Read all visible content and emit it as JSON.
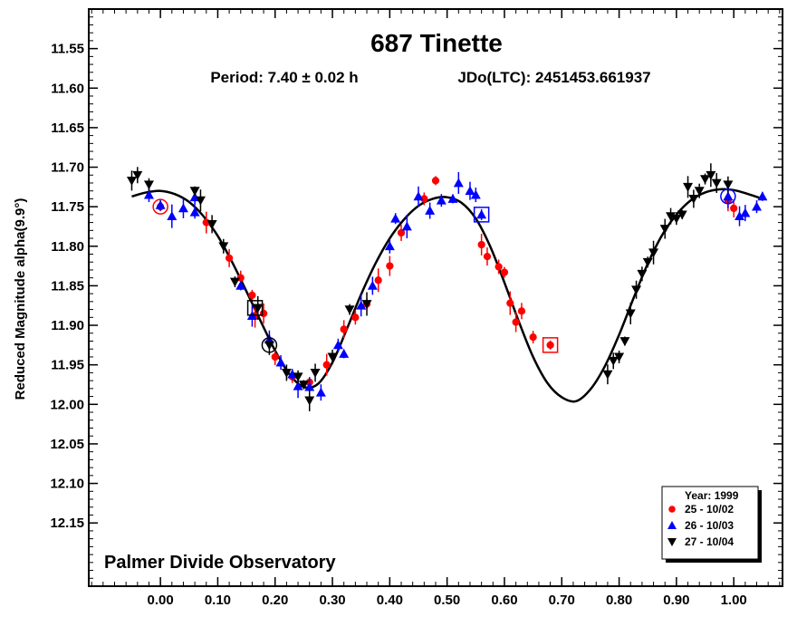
{
  "chart_data": {
    "type": "scatter",
    "title": "687 Tinette",
    "subtitle_period": "Period: 7.40 ± 0.02 h",
    "subtitle_jdo": "JDo(LTC): 2451453.661937",
    "ylabel": "Reduced Magnitude alpha(9.9°)",
    "xlabel": "",
    "xlim": [
      -0.125,
      1.085
    ],
    "ylim": [
      11.5,
      12.23
    ],
    "y_inverted": true,
    "x_ticks": [
      "0.00",
      "0.10",
      "0.20",
      "0.30",
      "0.40",
      "0.50",
      "0.60",
      "0.70",
      "0.80",
      "0.90",
      "1.00"
    ],
    "y_ticks": [
      "11.55",
      "11.60",
      "11.65",
      "11.70",
      "11.75",
      "11.80",
      "11.85",
      "11.90",
      "11.95",
      "12.00",
      "12.05",
      "12.10",
      "12.15"
    ],
    "grid": false,
    "annotation": "Palmer Divide Observatory",
    "legend": {
      "placement": "bottom-right",
      "title": "Year: 1999",
      "entries": [
        "25 - 10/02",
        "26 - 10/03",
        "27 - 10/04"
      ]
    },
    "series": [
      {
        "name": "25 - 10/02",
        "marker": "circle",
        "color": "#ff0000",
        "points": [
          [
            0.0,
            11.75
          ],
          [
            0.08,
            11.77
          ],
          [
            0.12,
            11.815
          ],
          [
            0.14,
            11.84
          ],
          [
            0.16,
            11.862
          ],
          [
            0.165,
            11.888
          ],
          [
            0.18,
            11.885
          ],
          [
            0.2,
            11.94
          ],
          [
            0.23,
            11.965
          ],
          [
            0.26,
            11.972
          ],
          [
            0.29,
            11.95
          ],
          [
            0.32,
            11.905
          ],
          [
            0.34,
            11.89
          ],
          [
            0.36,
            11.873
          ],
          [
            0.38,
            11.843
          ],
          [
            0.4,
            11.825
          ],
          [
            0.42,
            11.783
          ],
          [
            0.46,
            11.74
          ],
          [
            0.48,
            11.717
          ],
          [
            0.56,
            11.798
          ],
          [
            0.57,
            11.813
          ],
          [
            0.59,
            11.826
          ],
          [
            0.6,
            11.833
          ],
          [
            0.61,
            11.872
          ],
          [
            0.62,
            11.896
          ],
          [
            0.63,
            11.882
          ],
          [
            0.65,
            11.915
          ],
          [
            0.68,
            11.925
          ],
          [
            0.99,
            11.742
          ],
          [
            1.0,
            11.752
          ]
        ]
      },
      {
        "name": "26 - 10/03",
        "marker": "triangle-up",
        "color": "#0000ff",
        "points": [
          [
            -0.02,
            11.735
          ],
          [
            0.0,
            11.748
          ],
          [
            0.02,
            11.762
          ],
          [
            0.04,
            11.752
          ],
          [
            0.06,
            11.738
          ],
          [
            0.06,
            11.757
          ],
          [
            0.14,
            11.85
          ],
          [
            0.16,
            11.888
          ],
          [
            0.19,
            11.918
          ],
          [
            0.21,
            11.947
          ],
          [
            0.23,
            11.962
          ],
          [
            0.24,
            11.977
          ],
          [
            0.26,
            11.978
          ],
          [
            0.28,
            11.985
          ],
          [
            0.31,
            11.925
          ],
          [
            0.32,
            11.936
          ],
          [
            0.35,
            11.875
          ],
          [
            0.37,
            11.85
          ],
          [
            0.4,
            11.8
          ],
          [
            0.41,
            11.765
          ],
          [
            0.43,
            11.775
          ],
          [
            0.45,
            11.737
          ],
          [
            0.47,
            11.755
          ],
          [
            0.49,
            11.742
          ],
          [
            0.51,
            11.74
          ],
          [
            0.52,
            11.72
          ],
          [
            0.54,
            11.73
          ],
          [
            0.55,
            11.735
          ],
          [
            0.56,
            11.76
          ],
          [
            0.99,
            11.737
          ],
          [
            1.01,
            11.762
          ],
          [
            1.02,
            11.758
          ],
          [
            1.04,
            11.75
          ],
          [
            1.05,
            11.737
          ]
        ]
      },
      {
        "name": "27 - 10/04",
        "marker": "triangle-down",
        "color": "#000000",
        "points": [
          [
            -0.05,
            11.717
          ],
          [
            -0.04,
            11.71
          ],
          [
            -0.02,
            11.722
          ],
          [
            0.06,
            11.73
          ],
          [
            0.07,
            11.742
          ],
          [
            0.09,
            11.772
          ],
          [
            0.11,
            11.8
          ],
          [
            0.13,
            11.845
          ],
          [
            0.17,
            11.878
          ],
          [
            0.19,
            11.925
          ],
          [
            0.22,
            11.96
          ],
          [
            0.24,
            11.965
          ],
          [
            0.25,
            11.975
          ],
          [
            0.26,
            11.995
          ],
          [
            0.27,
            11.96
          ],
          [
            0.3,
            11.94
          ],
          [
            0.33,
            11.88
          ],
          [
            0.36,
            11.873
          ],
          [
            0.78,
            11.962
          ],
          [
            0.79,
            11.945
          ],
          [
            0.8,
            11.94
          ],
          [
            0.81,
            11.92
          ],
          [
            0.82,
            11.885
          ],
          [
            0.83,
            11.855
          ],
          [
            0.84,
            11.835
          ],
          [
            0.85,
            11.82
          ],
          [
            0.86,
            11.808
          ],
          [
            0.88,
            11.778
          ],
          [
            0.89,
            11.762
          ],
          [
            0.9,
            11.765
          ],
          [
            0.91,
            11.76
          ],
          [
            0.92,
            11.725
          ],
          [
            0.93,
            11.74
          ],
          [
            0.94,
            11.73
          ],
          [
            0.95,
            11.715
          ],
          [
            0.96,
            11.71
          ],
          [
            0.97,
            11.72
          ],
          [
            0.99,
            11.722
          ]
        ]
      }
    ],
    "fit_curve": {
      "color": "#000000",
      "points": [
        [
          -0.05,
          11.737
        ],
        [
          -0.025,
          11.732
        ],
        [
          0.0,
          11.73
        ],
        [
          0.025,
          11.734
        ],
        [
          0.05,
          11.744
        ],
        [
          0.075,
          11.762
        ],
        [
          0.1,
          11.787
        ],
        [
          0.125,
          11.82
        ],
        [
          0.15,
          11.857
        ],
        [
          0.175,
          11.895
        ],
        [
          0.2,
          11.932
        ],
        [
          0.225,
          11.962
        ],
        [
          0.25,
          11.978
        ],
        [
          0.275,
          11.974
        ],
        [
          0.3,
          11.947
        ],
        [
          0.325,
          11.905
        ],
        [
          0.35,
          11.861
        ],
        [
          0.375,
          11.822
        ],
        [
          0.4,
          11.79
        ],
        [
          0.425,
          11.766
        ],
        [
          0.45,
          11.749
        ],
        [
          0.475,
          11.74
        ],
        [
          0.5,
          11.738
        ],
        [
          0.525,
          11.745
        ],
        [
          0.55,
          11.765
        ],
        [
          0.575,
          11.8
        ],
        [
          0.6,
          11.846
        ],
        [
          0.625,
          11.895
        ],
        [
          0.65,
          11.94
        ],
        [
          0.675,
          11.973
        ],
        [
          0.7,
          11.991
        ],
        [
          0.725,
          11.996
        ],
        [
          0.75,
          11.981
        ],
        [
          0.775,
          11.952
        ],
        [
          0.8,
          11.912
        ],
        [
          0.825,
          11.866
        ],
        [
          0.85,
          11.822
        ],
        [
          0.875,
          11.786
        ],
        [
          0.9,
          11.76
        ],
        [
          0.925,
          11.742
        ],
        [
          0.95,
          11.732
        ],
        [
          0.975,
          11.728
        ],
        [
          1.0,
          11.729
        ],
        [
          1.025,
          11.734
        ],
        [
          1.05,
          11.74
        ]
      ]
    },
    "highlight_markers": [
      {
        "shape": "circle",
        "color": "#ff0000",
        "x": 0.0,
        "y": 11.75
      },
      {
        "shape": "square",
        "color": "#000000",
        "x": 0.165,
        "y": 11.878
      },
      {
        "shape": "circle",
        "color": "#000000",
        "x": 0.19,
        "y": 11.925
      },
      {
        "shape": "square",
        "color": "#0000ff",
        "x": 0.56,
        "y": 11.76
      },
      {
        "shape": "square",
        "color": "#ff0000",
        "x": 0.68,
        "y": 11.925
      },
      {
        "shape": "circle",
        "color": "#0000ff",
        "x": 0.99,
        "y": 11.737
      }
    ]
  }
}
